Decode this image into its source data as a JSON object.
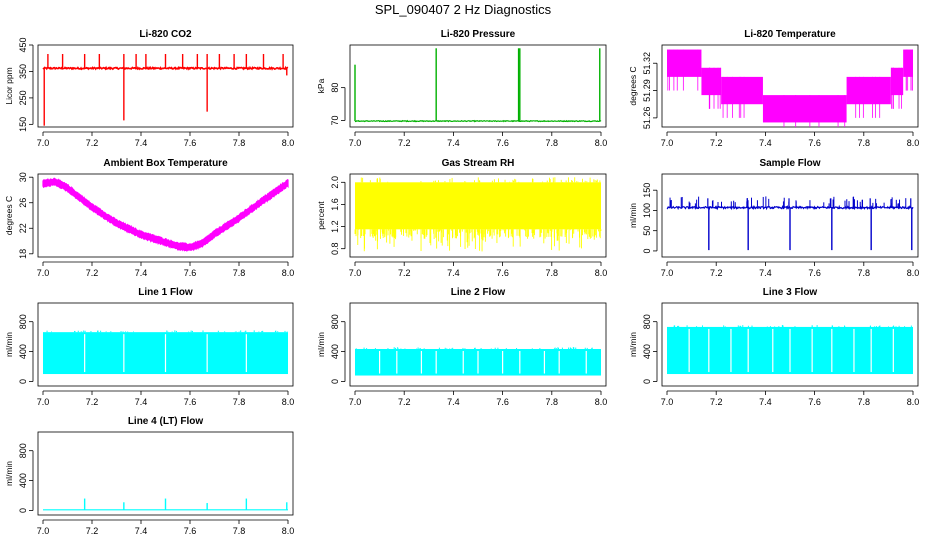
{
  "figure": {
    "title": "SPL_090407  2 Hz Diagnostics"
  },
  "chart_data": [
    {
      "id": "co2",
      "type": "line",
      "title": "Li-820 CO2",
      "ylabel": "Licor ppm",
      "color": "#ff0000",
      "xlim": [
        7.0,
        8.0
      ],
      "ylim": [
        140,
        450
      ],
      "x_ticks": [
        "7.0",
        "7.2",
        "7.4",
        "7.6",
        "7.8",
        "8.0"
      ],
      "y_ticks": [
        150,
        250,
        350,
        450
      ],
      "baseline": 362,
      "noise": 6,
      "spikes_up": [
        7.02,
        7.08,
        7.17,
        7.23,
        7.33,
        7.38,
        7.42,
        7.5,
        7.57,
        7.63,
        7.67,
        7.72,
        7.78,
        7.83,
        7.9,
        7.98
      ],
      "spike_up_value": 416,
      "spikes_down": [
        {
          "x": 7.005,
          "y": 145
        },
        {
          "x": 7.33,
          "y": 165
        },
        {
          "x": 7.67,
          "y": 198
        },
        {
          "x": 7.995,
          "y": 335
        }
      ]
    },
    {
      "id": "pressure",
      "type": "line",
      "title": "Li-820 Pressure",
      "ylabel": "kPa",
      "color": "#00b000",
      "xlim": [
        7.0,
        8.0
      ],
      "ylim": [
        68,
        93
      ],
      "x_ticks": [
        "7.0",
        "7.2",
        "7.4",
        "7.6",
        "7.8",
        "8.0"
      ],
      "y_ticks": [
        70,
        80
      ],
      "baseline": 69.8,
      "noise": 0.25,
      "spikes_up": [
        {
          "x": 7.0,
          "y": 87
        },
        {
          "x": 7.33,
          "y": 92
        },
        {
          "x": 7.665,
          "y": 92
        },
        {
          "x": 7.67,
          "y": 92
        },
        {
          "x": 7.995,
          "y": 92
        }
      ]
    },
    {
      "id": "li820temp",
      "type": "step",
      "title": "Li-820 Temperature",
      "ylabel": "degrees C",
      "color": "#ff00ff",
      "xlim": [
        7.0,
        8.0
      ],
      "ylim": [
        51.25,
        51.34
      ],
      "x_ticks": [
        "7.0",
        "7.2",
        "7.4",
        "7.6",
        "7.8",
        "8.0"
      ],
      "y_ticks": [
        "51.26",
        "51.29",
        "51.32"
      ],
      "levels": [
        {
          "x0": 7.0,
          "x1": 7.14,
          "y": 51.32
        },
        {
          "x0": 7.14,
          "x1": 7.22,
          "y": 51.3
        },
        {
          "x0": 7.22,
          "x1": 7.39,
          "y": 51.29
        },
        {
          "x0": 7.39,
          "x1": 7.73,
          "y": 51.27
        },
        {
          "x0": 7.73,
          "x1": 7.91,
          "y": 51.29
        },
        {
          "x0": 7.91,
          "x1": 7.96,
          "y": 51.3
        },
        {
          "x0": 7.96,
          "x1": 8.0,
          "y": 51.32
        }
      ],
      "step": 0.03
    },
    {
      "id": "boxtemp",
      "type": "line",
      "title": "Ambient Box Temperature",
      "ylabel": "degrees C",
      "color": "#ff00ff",
      "xlim": [
        7.0,
        8.0
      ],
      "ylim": [
        17.5,
        30.5
      ],
      "x_ticks": [
        "7.0",
        "7.2",
        "7.4",
        "7.6",
        "7.8",
        "8.0"
      ],
      "y_ticks": [
        18,
        22,
        26,
        30
      ],
      "curve": [
        [
          7.0,
          29.0
        ],
        [
          7.05,
          29.3
        ],
        [
          7.1,
          28.3
        ],
        [
          7.2,
          25.3
        ],
        [
          7.3,
          22.8
        ],
        [
          7.4,
          21.0
        ],
        [
          7.5,
          19.8
        ],
        [
          7.55,
          19.2
        ],
        [
          7.6,
          19.0
        ],
        [
          7.65,
          19.6
        ],
        [
          7.7,
          21.1
        ],
        [
          7.8,
          23.6
        ],
        [
          7.9,
          26.4
        ],
        [
          8.0,
          29.1
        ]
      ],
      "noise": 0.6
    },
    {
      "id": "rh",
      "type": "line",
      "title": "Gas Stream RH",
      "ylabel": "percent",
      "color": "#ffff00",
      "xlim": [
        7.0,
        8.0
      ],
      "ylim": [
        0.65,
        2.15
      ],
      "x_ticks": [
        "7.0",
        "7.2",
        "7.4",
        "7.6",
        "7.8",
        "8.0"
      ],
      "y_ticks": [
        "0.8",
        "1.2",
        "1.6",
        "2.0"
      ],
      "band_top": 2.0,
      "band_bottom": 1.15,
      "min_dip": 0.75
    },
    {
      "id": "sampleflow",
      "type": "line",
      "title": "Sample Flow",
      "ylabel": "ml/min",
      "color": "#0000cc",
      "xlim": [
        7.0,
        8.0
      ],
      "ylim": [
        -15,
        190
      ],
      "x_ticks": [
        "7.0",
        "7.2",
        "7.4",
        "7.6",
        "7.8",
        "8.0"
      ],
      "y_ticks": [
        0,
        50,
        100,
        150
      ],
      "baseline": 107,
      "noise": 5,
      "dips": [
        7.17,
        7.33,
        7.5,
        7.67,
        7.83,
        7.995
      ],
      "dip_value": 2,
      "spike_value": 130
    },
    {
      "id": "line1",
      "type": "band",
      "title": "Line 1 Flow",
      "ylabel": "ml/min",
      "color": "#00ffff",
      "xlim": [
        7.0,
        8.0
      ],
      "ylim": [
        -60,
        1050
      ],
      "x_ticks": [
        "7.0",
        "7.2",
        "7.4",
        "7.6",
        "7.8",
        "8.0"
      ],
      "y_ticks": [
        0,
        400,
        800
      ],
      "top": 660,
      "bottom": 100,
      "gaps": [
        7.17,
        7.33,
        7.5,
        7.67,
        7.83
      ]
    },
    {
      "id": "line2",
      "type": "band",
      "title": "Line 2 Flow",
      "ylabel": "ml/min",
      "color": "#00ffff",
      "xlim": [
        7.0,
        8.0
      ],
      "ylim": [
        -60,
        1050
      ],
      "x_ticks": [
        "7.0",
        "7.2",
        "7.4",
        "7.6",
        "7.8",
        "8.0"
      ],
      "y_ticks": [
        0,
        400,
        800
      ],
      "top": 435,
      "bottom": 80,
      "gaps": [
        7.1,
        7.17,
        7.27,
        7.33,
        7.44,
        7.5,
        7.6,
        7.67,
        7.77,
        7.83,
        7.94
      ]
    },
    {
      "id": "line3",
      "type": "band",
      "title": "Line 3 Flow",
      "ylabel": "ml/min",
      "color": "#00ffff",
      "xlim": [
        7.0,
        8.0
      ],
      "ylim": [
        -60,
        1050
      ],
      "x_ticks": [
        "7.0",
        "7.2",
        "7.4",
        "7.6",
        "7.8",
        "8.0"
      ],
      "y_ticks": [
        0,
        400,
        800
      ],
      "top": 730,
      "bottom": 100,
      "gaps": [
        7.09,
        7.17,
        7.26,
        7.33,
        7.43,
        7.5,
        7.59,
        7.67,
        7.76,
        7.83,
        7.92
      ]
    },
    {
      "id": "line4",
      "type": "line",
      "title": "Line 4 (LT) Flow",
      "ylabel": "ml/min",
      "color": "#00ffff",
      "xlim": [
        7.0,
        8.0
      ],
      "ylim": [
        -60,
        1050
      ],
      "x_ticks": [
        "7.0",
        "7.2",
        "7.4",
        "7.6",
        "7.8",
        "8.0"
      ],
      "y_ticks": [
        0,
        400,
        800
      ],
      "baseline": 10,
      "spikes_up": [
        {
          "x": 7.17,
          "y": 160
        },
        {
          "x": 7.33,
          "y": 110
        },
        {
          "x": 7.5,
          "y": 160
        },
        {
          "x": 7.67,
          "y": 100
        },
        {
          "x": 7.83,
          "y": 160
        },
        {
          "x": 7.995,
          "y": 110
        }
      ]
    }
  ]
}
